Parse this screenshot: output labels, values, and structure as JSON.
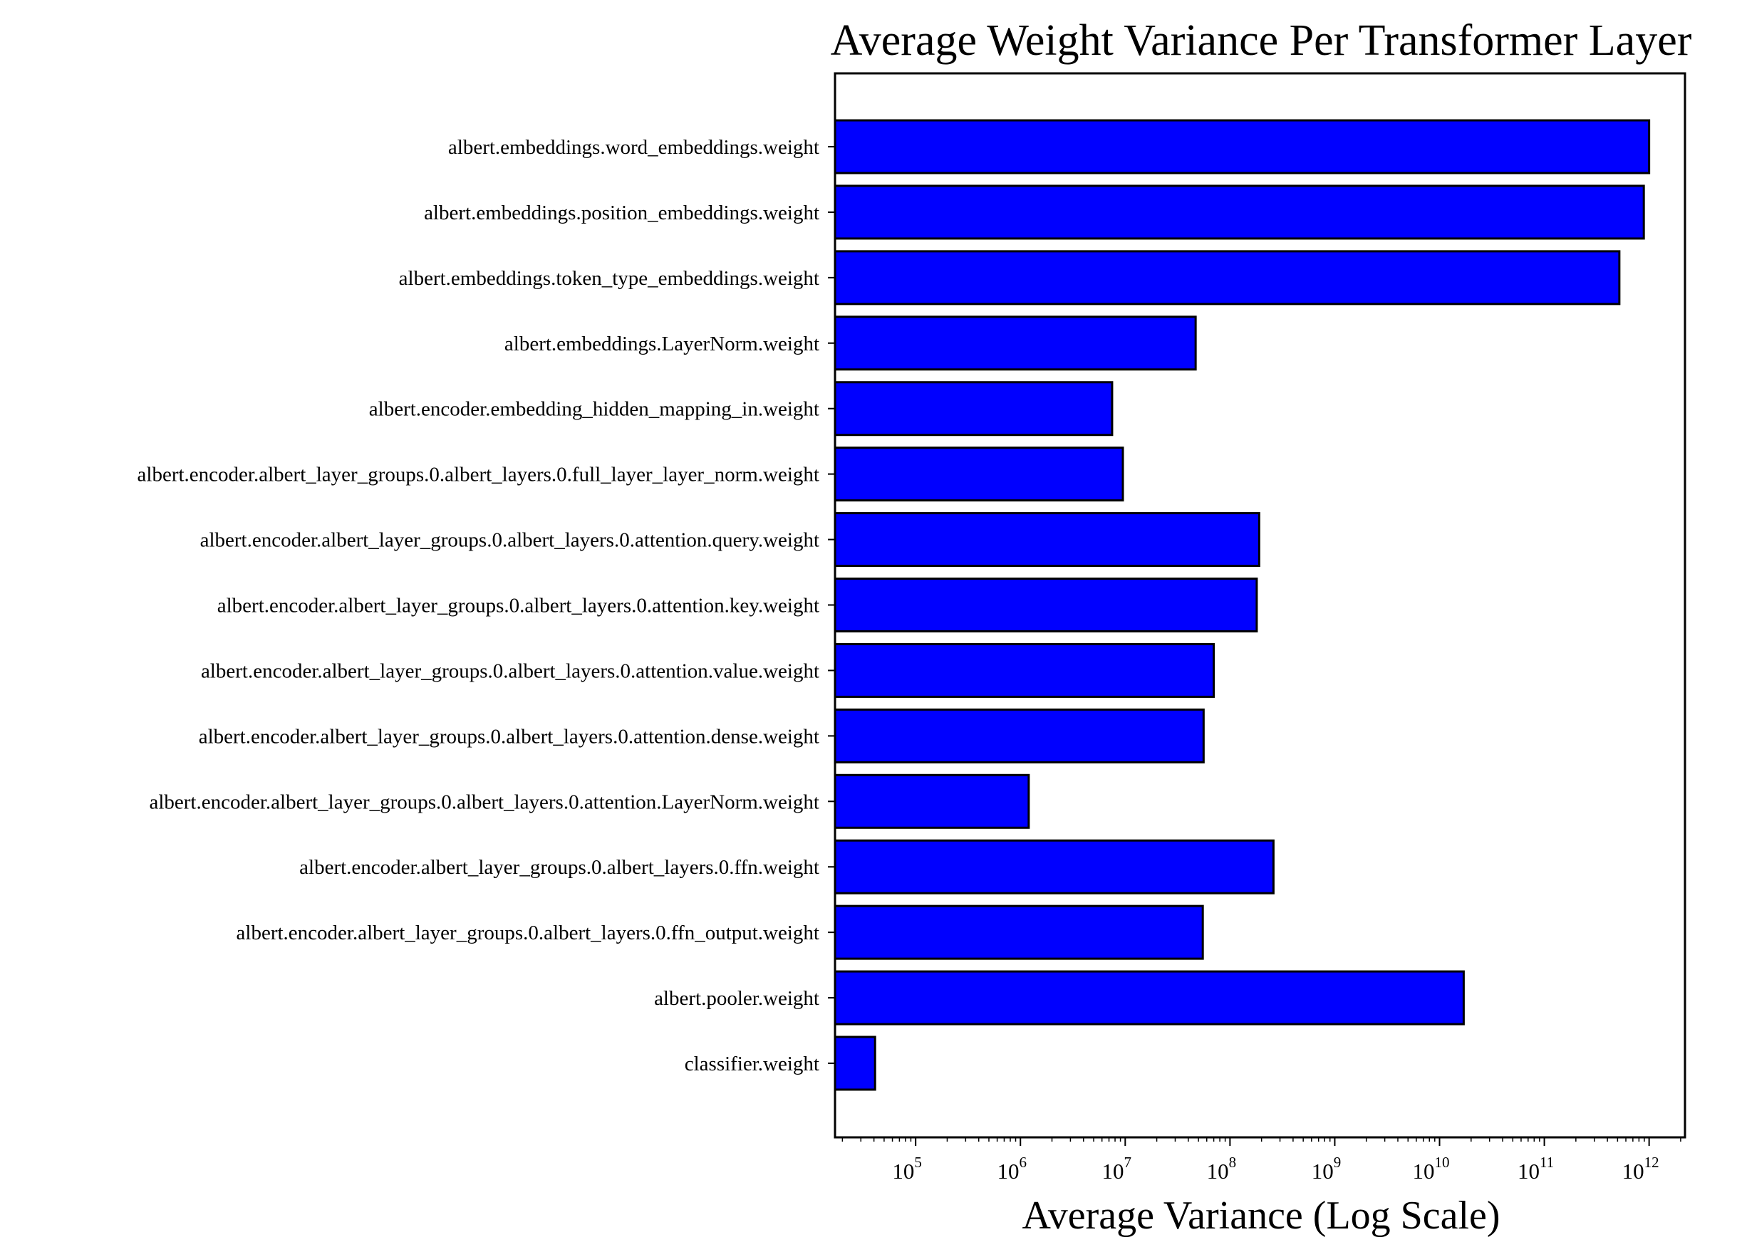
{
  "chart_data": {
    "type": "bar",
    "orientation": "horizontal",
    "title": "Average Weight Variance Per Transformer Layer",
    "xlabel": "Average Variance (Log Scale)",
    "ylabel": "",
    "xscale": "log",
    "xlim": [
      17000,
      2200000000000
    ],
    "x_ticks": [
      {
        "base": "10",
        "exp": "5",
        "value": 100000
      },
      {
        "base": "10",
        "exp": "6",
        "value": 1000000
      },
      {
        "base": "10",
        "exp": "7",
        "value": 10000000
      },
      {
        "base": "10",
        "exp": "8",
        "value": 100000000
      },
      {
        "base": "10",
        "exp": "9",
        "value": 1000000000
      },
      {
        "base": "10",
        "exp": "10",
        "value": 10000000000
      },
      {
        "base": "10",
        "exp": "11",
        "value": 100000000000
      },
      {
        "base": "10",
        "exp": "12",
        "value": 1000000000000
      }
    ],
    "grid": false,
    "bar_color": "#0000ff",
    "edge_color": "#000000",
    "categories": [
      "albert.embeddings.word_embeddings.weight",
      "albert.embeddings.position_embeddings.weight",
      "albert.embeddings.token_type_embeddings.weight",
      "albert.embeddings.LayerNorm.weight",
      "albert.encoder.embedding_hidden_mapping_in.weight",
      "albert.encoder.albert_layer_groups.0.albert_layers.0.full_layer_layer_norm.weight",
      "albert.encoder.albert_layer_groups.0.albert_layers.0.attention.query.weight",
      "albert.encoder.albert_layer_groups.0.albert_layers.0.attention.key.weight",
      "albert.encoder.albert_layer_groups.0.albert_layers.0.attention.value.weight",
      "albert.encoder.albert_layer_groups.0.albert_layers.0.attention.dense.weight",
      "albert.encoder.albert_layer_groups.0.albert_layers.0.attention.LayerNorm.weight",
      "albert.encoder.albert_layer_groups.0.albert_layers.0.ffn.weight",
      "albert.encoder.albert_layer_groups.0.albert_layers.0.ffn_output.weight",
      "albert.pooler.weight",
      "classifier.weight"
    ],
    "values": [
      1000000000000,
      890000000000,
      520000000000,
      47000000,
      7500000,
      9500000,
      190000000,
      180000000,
      70000000,
      56000000,
      1200000,
      260000000,
      55000000,
      17000000000,
      41000
    ]
  }
}
